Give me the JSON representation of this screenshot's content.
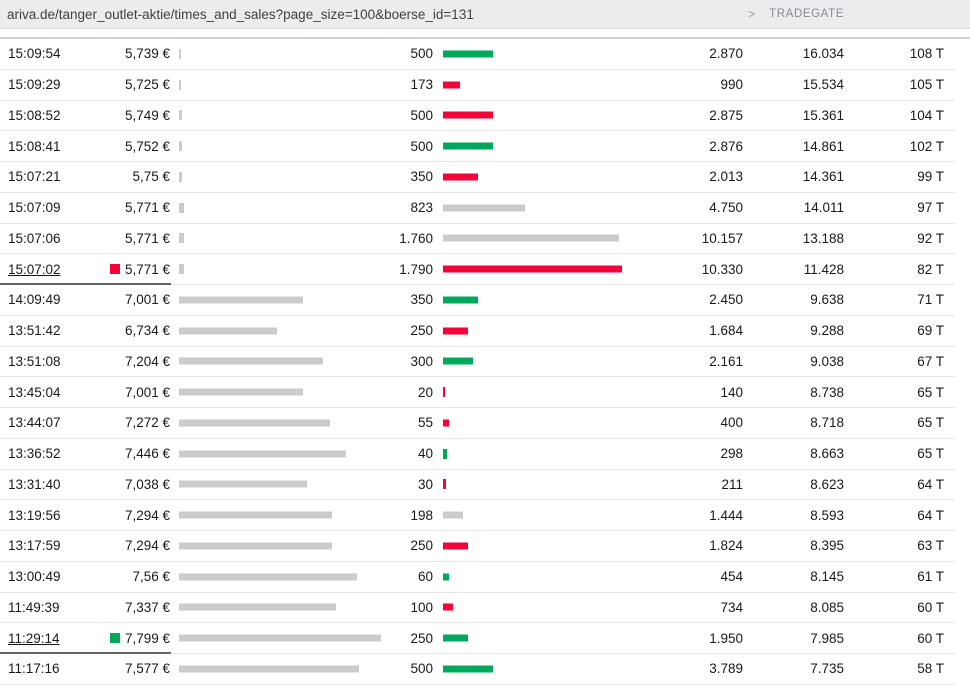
{
  "topbar": {
    "url": "ariva.de/tanger_outlet-aktie/times_and_sales?page_size=100&boerse_id=131",
    "chevron": ">",
    "exchange": "TRADEGATE"
  },
  "colors": {
    "up": "#00a85c",
    "down": "#f40438",
    "neutral": "#cbcbcb",
    "price_bar": "#cbcbcb"
  },
  "table": {
    "columns": [
      "time",
      "price",
      "price_bar",
      "volume",
      "volume_bar",
      "value",
      "cum_volume",
      "trades"
    ],
    "rows": [
      {
        "time": "15:09:54",
        "price": "5,739 €",
        "price_value": 5.739,
        "volume": "500",
        "volume_value": 500,
        "direction": "up",
        "marker": null,
        "marked": false,
        "value": "2.870",
        "cum_volume": "16.034",
        "trades": "108 T"
      },
      {
        "time": "15:09:29",
        "price": "5,725 €",
        "price_value": 5.725,
        "volume": "173",
        "volume_value": 173,
        "direction": "down",
        "marker": null,
        "marked": false,
        "value": "990",
        "cum_volume": "15.534",
        "trades": "105 T"
      },
      {
        "time": "15:08:52",
        "price": "5,749 €",
        "price_value": 5.749,
        "volume": "500",
        "volume_value": 500,
        "direction": "down",
        "marker": null,
        "marked": false,
        "value": "2.875",
        "cum_volume": "15.361",
        "trades": "104 T"
      },
      {
        "time": "15:08:41",
        "price": "5,752 €",
        "price_value": 5.752,
        "volume": "500",
        "volume_value": 500,
        "direction": "up",
        "marker": null,
        "marked": false,
        "value": "2.876",
        "cum_volume": "14.861",
        "trades": "102 T"
      },
      {
        "time": "15:07:21",
        "price": "5,75 €",
        "price_value": 5.75,
        "volume": "350",
        "volume_value": 350,
        "direction": "down",
        "marker": null,
        "marked": false,
        "value": "2.013",
        "cum_volume": "14.361",
        "trades": "99 T"
      },
      {
        "time": "15:07:09",
        "price": "5,771 €",
        "price_value": 5.771,
        "volume": "823",
        "volume_value": 823,
        "direction": "neutral",
        "marker": null,
        "marked": false,
        "value": "4.750",
        "cum_volume": "14.011",
        "trades": "97 T"
      },
      {
        "time": "15:07:06",
        "price": "5,771 €",
        "price_value": 5.771,
        "volume": "1.760",
        "volume_value": 1760,
        "direction": "neutral",
        "marker": null,
        "marked": false,
        "value": "10.157",
        "cum_volume": "13.188",
        "trades": "92 T"
      },
      {
        "time": "15:07:02",
        "price": "5,771 €",
        "price_value": 5.771,
        "volume": "1.790",
        "volume_value": 1790,
        "direction": "down",
        "marker": "down",
        "marked": true,
        "value": "10.330",
        "cum_volume": "11.428",
        "trades": "82 T"
      },
      {
        "time": "14:09:49",
        "price": "7,001 €",
        "price_value": 7.001,
        "volume": "350",
        "volume_value": 350,
        "direction": "up",
        "marker": null,
        "marked": false,
        "value": "2.450",
        "cum_volume": "9.638",
        "trades": "71 T"
      },
      {
        "time": "13:51:42",
        "price": "6,734 €",
        "price_value": 6.734,
        "volume": "250",
        "volume_value": 250,
        "direction": "down",
        "marker": null,
        "marked": false,
        "value": "1.684",
        "cum_volume": "9.288",
        "trades": "69 T"
      },
      {
        "time": "13:51:08",
        "price": "7,204 €",
        "price_value": 7.204,
        "volume": "300",
        "volume_value": 300,
        "direction": "up",
        "marker": null,
        "marked": false,
        "value": "2.161",
        "cum_volume": "9.038",
        "trades": "67 T"
      },
      {
        "time": "13:45:04",
        "price": "7,001 €",
        "price_value": 7.001,
        "volume": "20",
        "volume_value": 20,
        "direction": "down",
        "marker": null,
        "marked": false,
        "value": "140",
        "cum_volume": "8.738",
        "trades": "65 T"
      },
      {
        "time": "13:44:07",
        "price": "7,272 €",
        "price_value": 7.272,
        "volume": "55",
        "volume_value": 55,
        "direction": "down",
        "marker": null,
        "marked": false,
        "value": "400",
        "cum_volume": "8.718",
        "trades": "65 T"
      },
      {
        "time": "13:36:52",
        "price": "7,446 €",
        "price_value": 7.446,
        "volume": "40",
        "volume_value": 40,
        "direction": "up",
        "marker": null,
        "marked": false,
        "value": "298",
        "cum_volume": "8.663",
        "trades": "65 T"
      },
      {
        "time": "13:31:40",
        "price": "7,038 €",
        "price_value": 7.038,
        "volume": "30",
        "volume_value": 30,
        "direction": "down",
        "marker": null,
        "marked": false,
        "value": "211",
        "cum_volume": "8.623",
        "trades": "64 T"
      },
      {
        "time": "13:19:56",
        "price": "7,294 €",
        "price_value": 7.294,
        "volume": "198",
        "volume_value": 198,
        "direction": "neutral",
        "marker": null,
        "marked": false,
        "value": "1.444",
        "cum_volume": "8.593",
        "trades": "64 T"
      },
      {
        "time": "13:17:59",
        "price": "7,294 €",
        "price_value": 7.294,
        "volume": "250",
        "volume_value": 250,
        "direction": "down",
        "marker": null,
        "marked": false,
        "value": "1.824",
        "cum_volume": "8.395",
        "trades": "63 T"
      },
      {
        "time": "13:00:49",
        "price": "7,56 €",
        "price_value": 7.56,
        "volume": "60",
        "volume_value": 60,
        "direction": "up",
        "marker": null,
        "marked": false,
        "value": "454",
        "cum_volume": "8.145",
        "trades": "61 T"
      },
      {
        "time": "11:49:39",
        "price": "7,337 €",
        "price_value": 7.337,
        "volume": "100",
        "volume_value": 100,
        "direction": "down",
        "marker": null,
        "marked": false,
        "value": "734",
        "cum_volume": "8.085",
        "trades": "60 T"
      },
      {
        "time": "11:29:14",
        "price": "7,799 €",
        "price_value": 7.799,
        "volume": "250",
        "volume_value": 250,
        "direction": "up",
        "marker": "up",
        "marked": true,
        "value": "1.950",
        "cum_volume": "7.985",
        "trades": "60 T"
      },
      {
        "time": "11:17:16",
        "price": "7,577 €",
        "price_value": 7.577,
        "volume": "500",
        "volume_value": 500,
        "direction": "up",
        "marker": null,
        "marked": false,
        "value": "3.789",
        "cum_volume": "7.735",
        "trades": "58 T"
      }
    ]
  }
}
